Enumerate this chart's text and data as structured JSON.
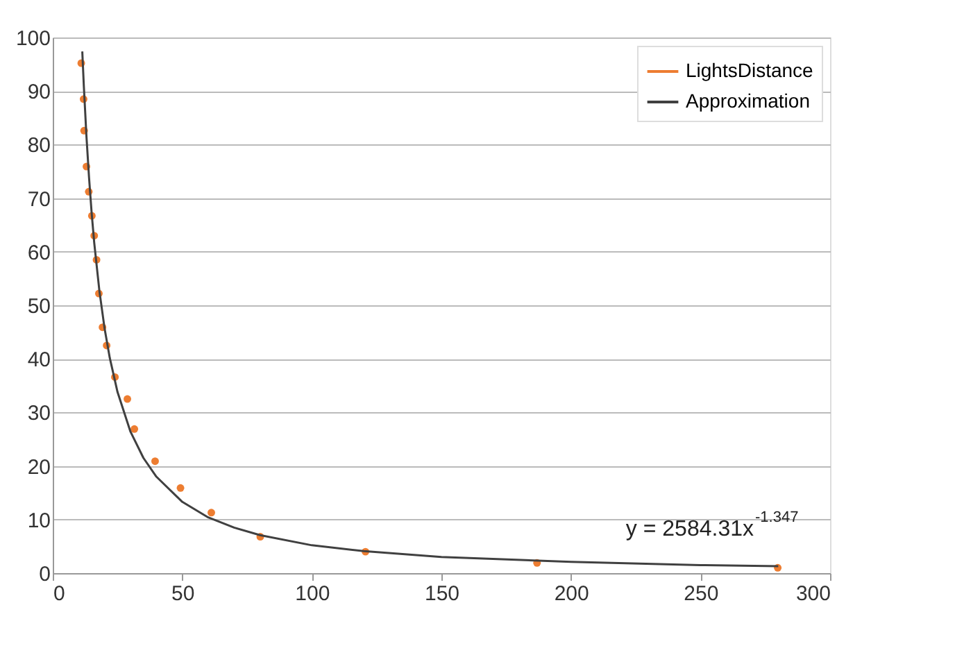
{
  "chart_data": {
    "type": "scatter",
    "xlim": [
      0,
      300
    ],
    "ylim": [
      0,
      100
    ],
    "xticks": [
      0,
      50,
      100,
      150,
      200,
      250,
      300
    ],
    "yticks": [
      0,
      10,
      20,
      30,
      40,
      50,
      60,
      70,
      80,
      90,
      100
    ],
    "grid": "y",
    "legend": "top right",
    "series": [
      {
        "name": "LightsDistance",
        "type": "scatter",
        "marker": "circle",
        "color": "#ed7d31",
        "x": [
          11.0,
          11.9,
          12.1,
          13.0,
          13.9,
          15.1,
          16.0,
          16.9,
          17.8,
          19.2,
          20.8,
          24.0,
          28.8,
          31.5,
          39.5,
          49.3,
          61.2,
          80.1,
          120.7,
          186.9,
          279.8
        ],
        "values": [
          95.2,
          88.5,
          82.6,
          75.9,
          71.2,
          66.7,
          63.0,
          58.5,
          52.2,
          45.9,
          42.5,
          36.6,
          32.5,
          26.9,
          20.9,
          15.9,
          11.3,
          6.8,
          4.0,
          1.9,
          1.0
        ]
      },
      {
        "name": "Approximation",
        "type": "line",
        "line_style": "solid",
        "color": "#404040",
        "x": [
          11.4,
          12,
          13,
          14,
          15,
          16,
          18,
          20,
          22,
          25,
          30,
          35,
          40,
          50,
          60,
          70,
          80,
          100,
          120,
          150,
          200,
          250,
          280
        ],
        "values": [
          97.4,
          90.9,
          81.6,
          73.9,
          67.3,
          61.7,
          52.7,
          45.7,
          40.2,
          33.8,
          26.4,
          21.5,
          18.0,
          13.3,
          10.4,
          8.5,
          7.1,
          5.2,
          4.1,
          3.0,
          2.1,
          1.5,
          1.3
        ]
      }
    ],
    "annotations": [
      "y = 2584.31x$^{-1.347}$"
    ]
  }
}
